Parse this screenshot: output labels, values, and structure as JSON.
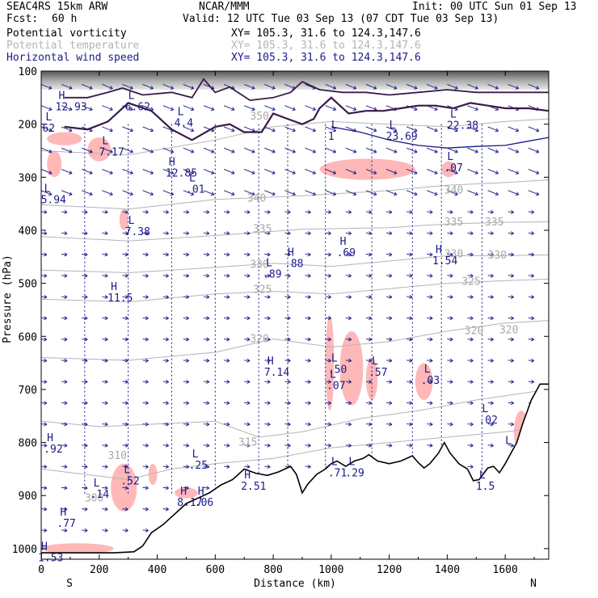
{
  "header": {
    "model": "SEAC4RS 15km ARW",
    "org": "NCAR/MMM",
    "init": "Init: 00 UTC Sun 01 Sep 13",
    "fcst_label": "Fcst:",
    "fcst_value": "60 h",
    "valid": "Valid: 12 UTC Tue 03 Sep 13 (07 CDT Tue 03 Sep 13)",
    "fields": [
      {
        "name": "Potential vorticity",
        "xy": "XY= 105.3, 31.6 to 124.3,147.6",
        "color": "#000000"
      },
      {
        "name": "Potential temperature",
        "xy": "XY= 105.3, 31.6 to 124.3,147.6",
        "color": "#b4b4b4"
      },
      {
        "name": "Horizontal wind speed",
        "xy": "XY= 105.3, 31.6 to 124.3,147.6",
        "color": "#1a1a8a"
      }
    ]
  },
  "chart_data": {
    "type": "cross-section",
    "xlabel": "Distance (km)",
    "ylabel": "Pressure (hPa)",
    "xlim": [
      0,
      1750
    ],
    "ylim": [
      1020,
      100
    ],
    "x_ticks": [
      0,
      200,
      400,
      600,
      800,
      1000,
      1200,
      1400,
      1600
    ],
    "y_ticks": [
      100,
      200,
      300,
      400,
      500,
      600,
      700,
      800,
      900,
      1000
    ],
    "x_end_labels": {
      "left": "S",
      "right": "N"
    },
    "terrain": [
      [
        0,
        1008
      ],
      [
        60,
        1008
      ],
      [
        150,
        1008
      ],
      [
        250,
        1008
      ],
      [
        320,
        1006
      ],
      [
        350,
        995
      ],
      [
        380,
        970
      ],
      [
        420,
        955
      ],
      [
        460,
        935
      ],
      [
        500,
        915
      ],
      [
        540,
        905
      ],
      [
        580,
        895
      ],
      [
        620,
        880
      ],
      [
        660,
        870
      ],
      [
        700,
        850
      ],
      [
        740,
        858
      ],
      [
        780,
        862
      ],
      [
        820,
        855
      ],
      [
        860,
        845
      ],
      [
        880,
        860
      ],
      [
        900,
        895
      ],
      [
        920,
        878
      ],
      [
        950,
        860
      ],
      [
        980,
        850
      ],
      [
        1000,
        840
      ],
      [
        1020,
        835
      ],
      [
        1050,
        845
      ],
      [
        1080,
        835
      ],
      [
        1110,
        830
      ],
      [
        1130,
        823
      ],
      [
        1160,
        835
      ],
      [
        1200,
        840
      ],
      [
        1240,
        835
      ],
      [
        1280,
        825
      ],
      [
        1300,
        838
      ],
      [
        1320,
        848
      ],
      [
        1340,
        840
      ],
      [
        1370,
        820
      ],
      [
        1390,
        800
      ],
      [
        1410,
        820
      ],
      [
        1440,
        840
      ],
      [
        1470,
        850
      ],
      [
        1490,
        872
      ],
      [
        1510,
        870
      ],
      [
        1540,
        848
      ],
      [
        1560,
        845
      ],
      [
        1580,
        857
      ],
      [
        1600,
        840
      ],
      [
        1620,
        820
      ],
      [
        1640,
        800
      ],
      [
        1660,
        765
      ],
      [
        1690,
        720
      ],
      [
        1720,
        690
      ],
      [
        1750,
        690
      ]
    ],
    "theta_isentropes": [
      {
        "label": "310",
        "points": [
          [
            0,
            850
          ],
          [
            150,
            860
          ],
          [
            300,
            870
          ],
          [
            450,
            850
          ],
          [
            600,
            840
          ],
          [
            800,
            830
          ],
          [
            1000,
            810
          ],
          [
            1200,
            800
          ],
          [
            1400,
            790
          ],
          [
            1600,
            780
          ],
          [
            1750,
            770
          ]
        ]
      },
      {
        "label": "315",
        "points": [
          [
            0,
            760
          ],
          [
            200,
            770
          ],
          [
            400,
            765
          ],
          [
            600,
            760
          ],
          [
            750,
            790
          ],
          [
            900,
            780
          ],
          [
            1100,
            755
          ],
          [
            1300,
            740
          ],
          [
            1500,
            720
          ],
          [
            1750,
            700
          ]
        ]
      },
      {
        "label": "320",
        "points": [
          [
            0,
            640
          ],
          [
            300,
            645
          ],
          [
            600,
            630
          ],
          [
            800,
            605
          ],
          [
            1000,
            620
          ],
          [
            1200,
            610
          ],
          [
            1400,
            590
          ],
          [
            1600,
            575
          ],
          [
            1750,
            570
          ]
        ]
      },
      {
        "label": "325",
        "points": [
          [
            0,
            530
          ],
          [
            300,
            535
          ],
          [
            600,
            520
          ],
          [
            800,
            515
          ],
          [
            1000,
            520
          ],
          [
            1200,
            510
          ],
          [
            1400,
            500
          ],
          [
            1600,
            495
          ],
          [
            1750,
            492
          ]
        ]
      },
      {
        "label": "330",
        "points": [
          [
            0,
            475
          ],
          [
            300,
            480
          ],
          [
            600,
            470
          ],
          [
            800,
            462
          ],
          [
            1000,
            468
          ],
          [
            1200,
            458
          ],
          [
            1400,
            448
          ],
          [
            1600,
            448
          ],
          [
            1750,
            446
          ]
        ]
      },
      {
        "label": "335",
        "points": [
          [
            0,
            412
          ],
          [
            300,
            420
          ],
          [
            600,
            410
          ],
          [
            900,
            398
          ],
          [
            1200,
            395
          ],
          [
            1400,
            388
          ],
          [
            1600,
            385
          ],
          [
            1750,
            384
          ]
        ]
      },
      {
        "label": "340",
        "points": [
          [
            0,
            352
          ],
          [
            300,
            360
          ],
          [
            600,
            342
          ],
          [
            900,
            335
          ],
          [
            1200,
            325
          ],
          [
            1400,
            315
          ],
          [
            1600,
            310
          ],
          [
            1750,
            305
          ]
        ]
      },
      {
        "label": "350",
        "points": [
          [
            0,
            250
          ],
          [
            300,
            258
          ],
          [
            600,
            230
          ],
          [
            800,
            205
          ],
          [
            1000,
            195
          ],
          [
            1200,
            200
          ],
          [
            1400,
            205
          ],
          [
            1600,
            195
          ],
          [
            1750,
            190
          ]
        ]
      }
    ],
    "theta_labels": [
      {
        "text": "310",
        "x": 230,
        "p": 825
      },
      {
        "text": "315",
        "x": 680,
        "p": 800
      },
      {
        "text": "320",
        "x": 720,
        "p": 605
      },
      {
        "text": "325",
        "x": 730,
        "p": 512
      },
      {
        "text": "330",
        "x": 720,
        "p": 465
      },
      {
        "text": "335",
        "x": 730,
        "p": 398
      },
      {
        "text": "340",
        "x": 710,
        "p": 340
      },
      {
        "text": "350",
        "x": 720,
        "p": 185
      },
      {
        "text": "340",
        "x": 1390,
        "p": 325
      },
      {
        "text": "335",
        "x": 1390,
        "p": 385
      },
      {
        "text": "335",
        "x": 1530,
        "p": 385
      },
      {
        "text": "330",
        "x": 1390,
        "p": 445
      },
      {
        "text": "330",
        "x": 1540,
        "p": 447
      },
      {
        "text": "325",
        "x": 1450,
        "p": 497
      },
      {
        "text": "320",
        "x": 1460,
        "p": 590
      },
      {
        "text": "320",
        "x": 1580,
        "p": 588
      },
      {
        "text": "300",
        "x": 150,
        "p": 905
      }
    ],
    "extrema": [
      {
        "kind": "H",
        "value": "12.93",
        "x": 60,
        "p": 165
      },
      {
        "kind": "L",
        "value": "62",
        "x": 15,
        "p": 205
      },
      {
        "kind": "L",
        "value": "6.62",
        "x": 300,
        "p": 165
      },
      {
        "kind": "L",
        "value": "7.17",
        "x": 210,
        "p": 250
      },
      {
        "kind": "H",
        "value": "12.85",
        "x": 440,
        "p": 290
      },
      {
        "kind": "L",
        "value": ".01",
        "x": 510,
        "p": 320
      },
      {
        "kind": "L",
        "value": "4.4",
        "x": 470,
        "p": 195
      },
      {
        "kind": "L",
        "value": "5.94",
        "x": 10,
        "p": 340
      },
      {
        "kind": "L",
        "value": "7.38",
        "x": 300,
        "p": 400
      },
      {
        "kind": "H",
        "value": "11.5",
        "x": 240,
        "p": 525
      },
      {
        "kind": "L",
        "value": ".89",
        "x": 775,
        "p": 480
      },
      {
        "kind": "H",
        "value": ".88",
        "x": 850,
        "p": 460
      },
      {
        "kind": "H",
        "value": ".69",
        "x": 1030,
        "p": 440
      },
      {
        "kind": "H",
        "value": "1.54",
        "x": 1360,
        "p": 455
      },
      {
        "kind": "L",
        "value": "23.69",
        "x": 1200,
        "p": 220
      },
      {
        "kind": "L",
        "value": "22.38",
        "x": 1410,
        "p": 200
      },
      {
        "kind": "L",
        "value": "1",
        "x": 1000,
        "p": 220
      },
      {
        "kind": "L",
        "value": ".07",
        "x": 1400,
        "p": 280
      },
      {
        "kind": "H",
        "value": "7.14",
        "x": 780,
        "p": 665
      },
      {
        "kind": "L",
        "value": ".50",
        "x": 1000,
        "p": 660
      },
      {
        "kind": "L",
        "value": ".07",
        "x": 995,
        "p": 690
      },
      {
        "kind": "L",
        "value": ".57",
        "x": 1140,
        "p": 665
      },
      {
        "kind": "L",
        "value": ".03",
        "x": 1320,
        "p": 680
      },
      {
        "kind": "L",
        "value": ".02",
        "x": 1520,
        "p": 755
      },
      {
        "kind": "H",
        "value": ".92",
        "x": 20,
        "p": 810
      },
      {
        "kind": "L",
        "value": ".25",
        "x": 520,
        "p": 840
      },
      {
        "kind": "L",
        "value": ".14",
        "x": 180,
        "p": 895
      },
      {
        "kind": "L",
        "value": ".52",
        "x": 285,
        "p": 870
      },
      {
        "kind": "H",
        "value": ".77",
        "x": 65,
        "p": 950
      },
      {
        "kind": "H",
        "value": "8.17",
        "x": 480,
        "p": 910
      },
      {
        "kind": "H",
        "value": ".06",
        "x": 540,
        "p": 910
      },
      {
        "kind": "H",
        "value": "2.51",
        "x": 700,
        "p": 880
      },
      {
        "kind": "L",
        "value": ".71",
        "x": 1000,
        "p": 855
      },
      {
        "kind": "L",
        "value": ".29",
        "x": 1060,
        "p": 855
      },
      {
        "kind": "L",
        "value": "1.5",
        "x": 1510,
        "p": 880
      },
      {
        "kind": "L",
        "value": "",
        "x": 1600,
        "p": 815
      },
      {
        "kind": "H",
        "value": "1.53",
        "x": 0,
        "p": 1015
      }
    ],
    "pv_shaded_regions": [
      {
        "x": [
          20,
          140
        ],
        "p": [
          215,
          240
        ]
      },
      {
        "x": [
          20,
          70
        ],
        "p": [
          250,
          300
        ]
      },
      {
        "x": [
          160,
          240
        ],
        "p": [
          225,
          270
        ]
      },
      {
        "x": [
          270,
          300
        ],
        "p": [
          360,
          400
        ]
      },
      {
        "x": [
          960,
          1290
        ],
        "p": [
          265,
          305
        ]
      },
      {
        "x": [
          1380,
          1430
        ],
        "p": [
          270,
          300
        ]
      },
      {
        "x": [
          1030,
          1110
        ],
        "p": [
          590,
          730
        ]
      },
      {
        "x": [
          980,
          1010
        ],
        "p": [
          560,
          740
        ]
      },
      {
        "x": [
          1120,
          1160
        ],
        "p": [
          640,
          720
        ]
      },
      {
        "x": [
          1290,
          1350
        ],
        "p": [
          650,
          720
        ]
      },
      {
        "x": [
          240,
          330
        ],
        "p": [
          840,
          930
        ]
      },
      {
        "x": [
          0,
          250
        ],
        "p": [
          990,
          1010
        ]
      },
      {
        "x": [
          1630,
          1680
        ],
        "p": [
          740,
          820
        ]
      },
      {
        "x": [
          1530,
          1600
        ],
        "p": [
          855,
          880
        ]
      },
      {
        "x": [
          370,
          400
        ],
        "p": [
          840,
          880
        ]
      },
      {
        "x": [
          460,
          540
        ],
        "p": [
          885,
          905
        ]
      }
    ],
    "pv_2pvu_contour": [
      [
        80,
        205
      ],
      [
        160,
        210
      ],
      [
        230,
        195
      ],
      [
        300,
        160
      ],
      [
        380,
        175
      ],
      [
        450,
        210
      ],
      [
        520,
        230
      ],
      [
        600,
        205
      ],
      [
        650,
        200
      ],
      [
        700,
        215
      ],
      [
        760,
        215
      ],
      [
        800,
        180
      ],
      [
        850,
        190
      ],
      [
        900,
        200
      ],
      [
        940,
        190
      ],
      [
        960,
        170
      ],
      [
        1000,
        150
      ],
      [
        1060,
        180
      ],
      [
        1120,
        175
      ],
      [
        1180,
        175
      ],
      [
        1240,
        170
      ],
      [
        1300,
        165
      ],
      [
        1360,
        165
      ],
      [
        1420,
        170
      ],
      [
        1480,
        160
      ],
      [
        1540,
        165
      ],
      [
        1600,
        170
      ],
      [
        1680,
        170
      ],
      [
        1750,
        175
      ]
    ],
    "pv_2pvu_contour_upper": [
      [
        80,
        150
      ],
      [
        160,
        150
      ],
      [
        230,
        140
      ],
      [
        280,
        132
      ],
      [
        350,
        145
      ],
      [
        450,
        140
      ],
      [
        520,
        150
      ],
      [
        560,
        115
      ],
      [
        600,
        140
      ],
      [
        650,
        130
      ],
      [
        720,
        155
      ],
      [
        800,
        150
      ],
      [
        860,
        140
      ],
      [
        900,
        120
      ],
      [
        960,
        135
      ],
      [
        1040,
        140
      ],
      [
        1120,
        140
      ],
      [
        1200,
        145
      ],
      [
        1300,
        140
      ],
      [
        1400,
        135
      ],
      [
        1500,
        140
      ],
      [
        1600,
        140
      ],
      [
        1750,
        140
      ]
    ],
    "wind_speed_contour": [
      [
        1000,
        205
      ],
      [
        1100,
        215
      ],
      [
        1200,
        230
      ],
      [
        1300,
        240
      ],
      [
        1400,
        245
      ],
      [
        1500,
        242
      ],
      [
        1600,
        240
      ],
      [
        1700,
        230
      ],
      [
        1750,
        225
      ]
    ],
    "grid": false,
    "legend": "none"
  }
}
